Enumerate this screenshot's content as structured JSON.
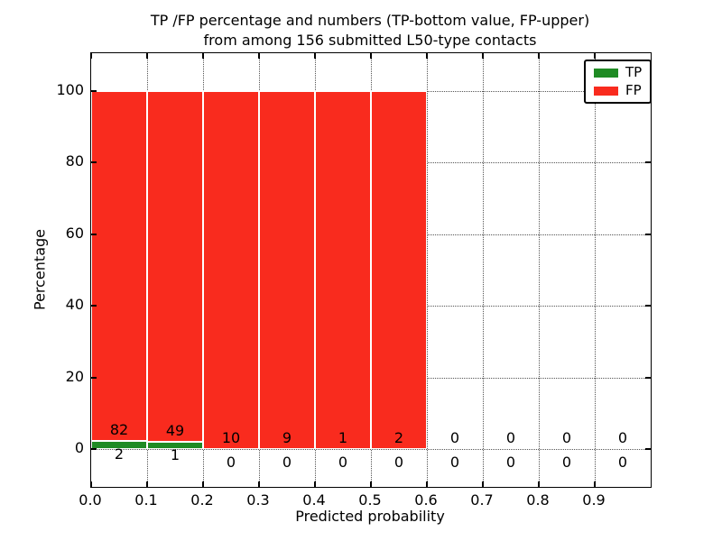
{
  "chart_data": {
    "type": "bar",
    "stacked": true,
    "title_line1": "TP /FP percentage and numbers (TP-bottom value, FP-upper)",
    "title_line2": "from among 156 submitted L50-type contacts",
    "xlabel": "Predicted probability",
    "ylabel": "Percentage",
    "total_contacts": 156,
    "bins": [
      "0.0-0.1",
      "0.1-0.2",
      "0.2-0.3",
      "0.3-0.4",
      "0.4-0.5",
      "0.5-0.6",
      "0.6-0.7",
      "0.7-0.8",
      "0.8-0.9",
      "0.9-1.0"
    ],
    "x_tick_labels": [
      "0.0",
      "0.1",
      "0.2",
      "0.3",
      "0.4",
      "0.5",
      "0.6",
      "0.7",
      "0.8",
      "0.9"
    ],
    "y_tick_values": [
      0,
      20,
      40,
      60,
      80,
      100
    ],
    "xlim": [
      0.0,
      1.0
    ],
    "ylim": [
      -11,
      111
    ],
    "grid_style": "dotted",
    "legend_position": "upper right",
    "bar_mode": "per-bin TP/FP counts stacked to 100%",
    "series": [
      {
        "name": "TP",
        "color": "#1f8b24",
        "counts": [
          2,
          1,
          0,
          0,
          0,
          0,
          0,
          0,
          0,
          0
        ]
      },
      {
        "name": "FP",
        "color": "#f92b1e",
        "counts": [
          82,
          49,
          10,
          9,
          1,
          2,
          0,
          0,
          0,
          0
        ]
      }
    ]
  }
}
